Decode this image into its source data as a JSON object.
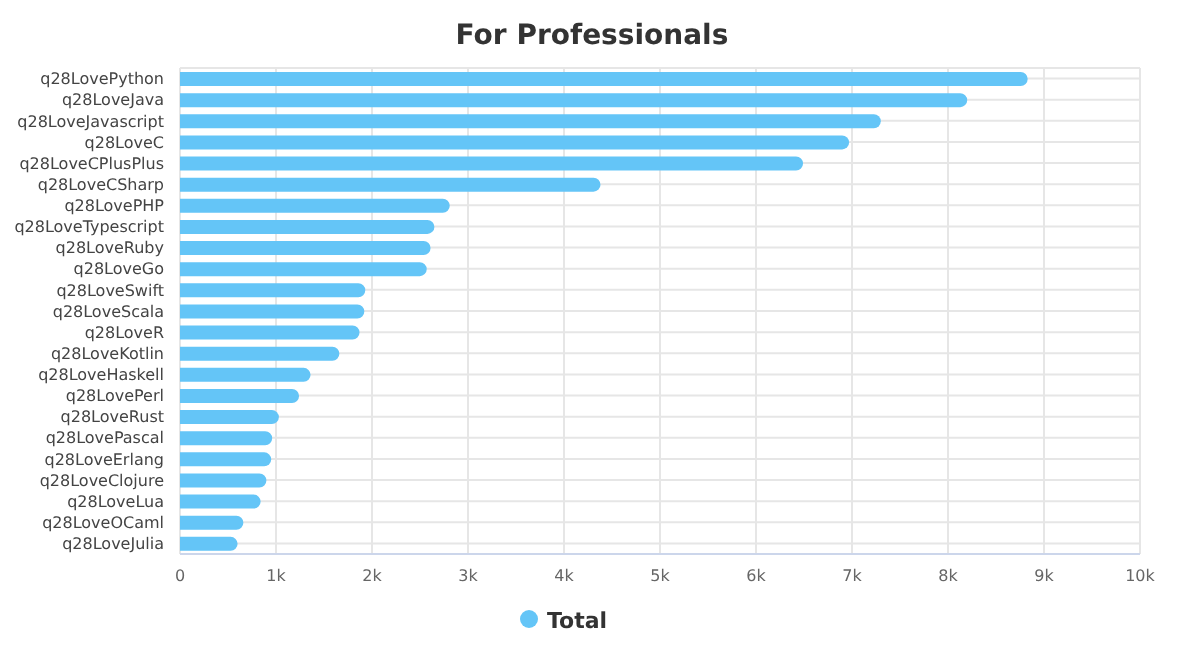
{
  "chart_data": {
    "type": "bar",
    "orientation": "horizontal",
    "title": "For Professionals",
    "categories": [
      "q28LovePython",
      "q28LoveJava",
      "q28LoveJavascript",
      "q28LoveC",
      "q28LoveCPlusPlus",
      "q28LoveCSharp",
      "q28LovePHP",
      "q28LoveTypescript",
      "q28LoveRuby",
      "q28LoveGo",
      "q28LoveSwift",
      "q28LoveScala",
      "q28LoveR",
      "q28LoveKotlin",
      "q28LoveHaskell",
      "q28LovePerl",
      "q28LoveRust",
      "q28LovePascal",
      "q28LoveErlang",
      "q28LoveClojure",
      "q28LoveLua",
      "q28LoveOCaml",
      "q28LoveJulia"
    ],
    "series": [
      {
        "name": "Total",
        "color": "#64c5f7",
        "values": [
          8830,
          8200,
          7300,
          6970,
          6490,
          4380,
          2810,
          2650,
          2610,
          2570,
          1930,
          1920,
          1870,
          1660,
          1360,
          1240,
          1030,
          960,
          950,
          900,
          840,
          660,
          600
        ]
      }
    ],
    "xlim": [
      0,
      10000
    ],
    "xticks": [
      {
        "value": 0,
        "label": "0"
      },
      {
        "value": 1000,
        "label": "1k"
      },
      {
        "value": 2000,
        "label": "2k"
      },
      {
        "value": 3000,
        "label": "3k"
      },
      {
        "value": 4000,
        "label": "4k"
      },
      {
        "value": 5000,
        "label": "5k"
      },
      {
        "value": 6000,
        "label": "6k"
      },
      {
        "value": 7000,
        "label": "7k"
      },
      {
        "value": 8000,
        "label": "8k"
      },
      {
        "value": 9000,
        "label": "9k"
      },
      {
        "value": 10000,
        "label": "10k"
      }
    ],
    "grid": true,
    "legend": "bottom"
  }
}
